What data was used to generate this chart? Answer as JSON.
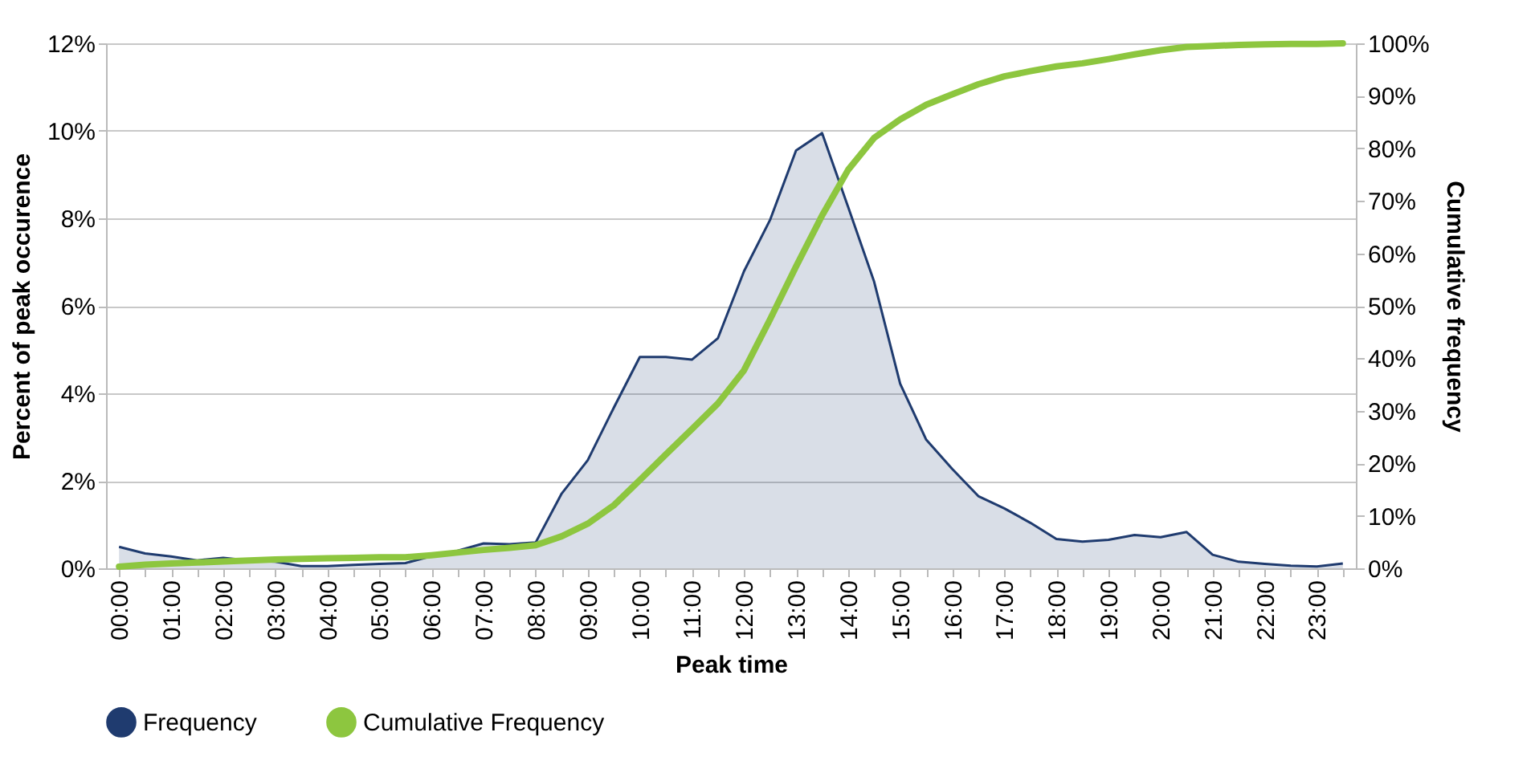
{
  "chart_data": {
    "type": "area",
    "xlabel": "Peak time",
    "ylabel": "Percent of peak occurence",
    "y2label": "Cumulative frequency",
    "categories": [
      "00:00",
      null,
      "01:00",
      null,
      "02:00",
      null,
      "03:00",
      null,
      "04:00",
      null,
      "05:00",
      null,
      "06:00",
      null,
      "07:00",
      null,
      "08:00",
      null,
      "09:00",
      null,
      "10:00",
      null,
      "11:00",
      null,
      "12:00",
      null,
      "13:00",
      null,
      "14:00",
      null,
      "15:00",
      null,
      "16:00",
      null,
      "17:00",
      null,
      "18:00",
      null,
      "19:00",
      null,
      "20:00",
      null,
      "21:00",
      null,
      "22:00",
      null,
      "23:00",
      null
    ],
    "series": [
      {
        "name": "Frequency",
        "color": "#1f3b6f",
        "values": [
          0.49,
          0.34,
          0.27,
          0.18,
          0.24,
          0.18,
          0.15,
          0.05,
          0.05,
          0.08,
          0.1,
          0.12,
          0.28,
          0.4,
          0.57,
          0.55,
          0.59,
          1.71,
          2.47,
          3.67,
          4.83,
          4.83,
          4.77,
          5.26,
          6.79,
          7.96,
          9.55,
          9.95,
          8.26,
          6.55,
          4.22,
          2.94,
          2.27,
          1.65,
          1.37,
          1.04,
          0.67,
          0.61,
          0.65,
          0.76,
          0.71,
          0.83,
          0.31,
          0.15,
          0.1,
          0.06,
          0.04,
          0.11
        ]
      },
      {
        "name": "Cumulative Frequency",
        "type": "line",
        "axis": "y2",
        "color": "#8dc63f",
        "values": [
          0.3,
          0.7,
          0.9,
          1.1,
          1.3,
          1.5,
          1.7,
          1.8,
          1.9,
          2.0,
          2.1,
          2.1,
          2.5,
          3.0,
          3.5,
          3.9,
          4.4,
          6.1,
          8.5,
          12.0,
          16.8,
          21.7,
          26.5,
          31.4,
          37.7,
          47.4,
          57.5,
          67.2,
          75.9,
          82.0,
          85.5,
          88.3,
          90.3,
          92.2,
          93.7,
          94.7,
          95.6,
          96.2,
          97.0,
          97.9,
          98.7,
          99.3,
          99.5,
          99.7,
          99.8,
          99.9,
          99.9,
          100
        ]
      }
    ],
    "ylim": [
      0,
      12
    ],
    "yticks": [
      {
        "value": 0,
        "label": "0%"
      },
      {
        "value": 2,
        "label": "2%"
      },
      {
        "value": 4,
        "label": "4%"
      },
      {
        "value": 6,
        "label": "6%"
      },
      {
        "value": 8,
        "label": "8%"
      },
      {
        "value": 10,
        "label": "10%"
      },
      {
        "value": 12,
        "label": "12%"
      }
    ],
    "y2lim": [
      0,
      100
    ],
    "y2ticks": [
      {
        "value": 0,
        "label": "0%"
      },
      {
        "value": 10,
        "label": "10%"
      },
      {
        "value": 20,
        "label": "20%"
      },
      {
        "value": 30,
        "label": "30%"
      },
      {
        "value": 40,
        "label": "40%"
      },
      {
        "value": 50,
        "label": "50%"
      },
      {
        "value": 60,
        "label": "60%"
      },
      {
        "value": 70,
        "label": "70%"
      },
      {
        "value": 80,
        "label": "80%"
      },
      {
        "value": 90,
        "label": "90%"
      },
      {
        "value": 100,
        "label": "100%"
      }
    ],
    "grid": "y",
    "legend": "bottom"
  }
}
